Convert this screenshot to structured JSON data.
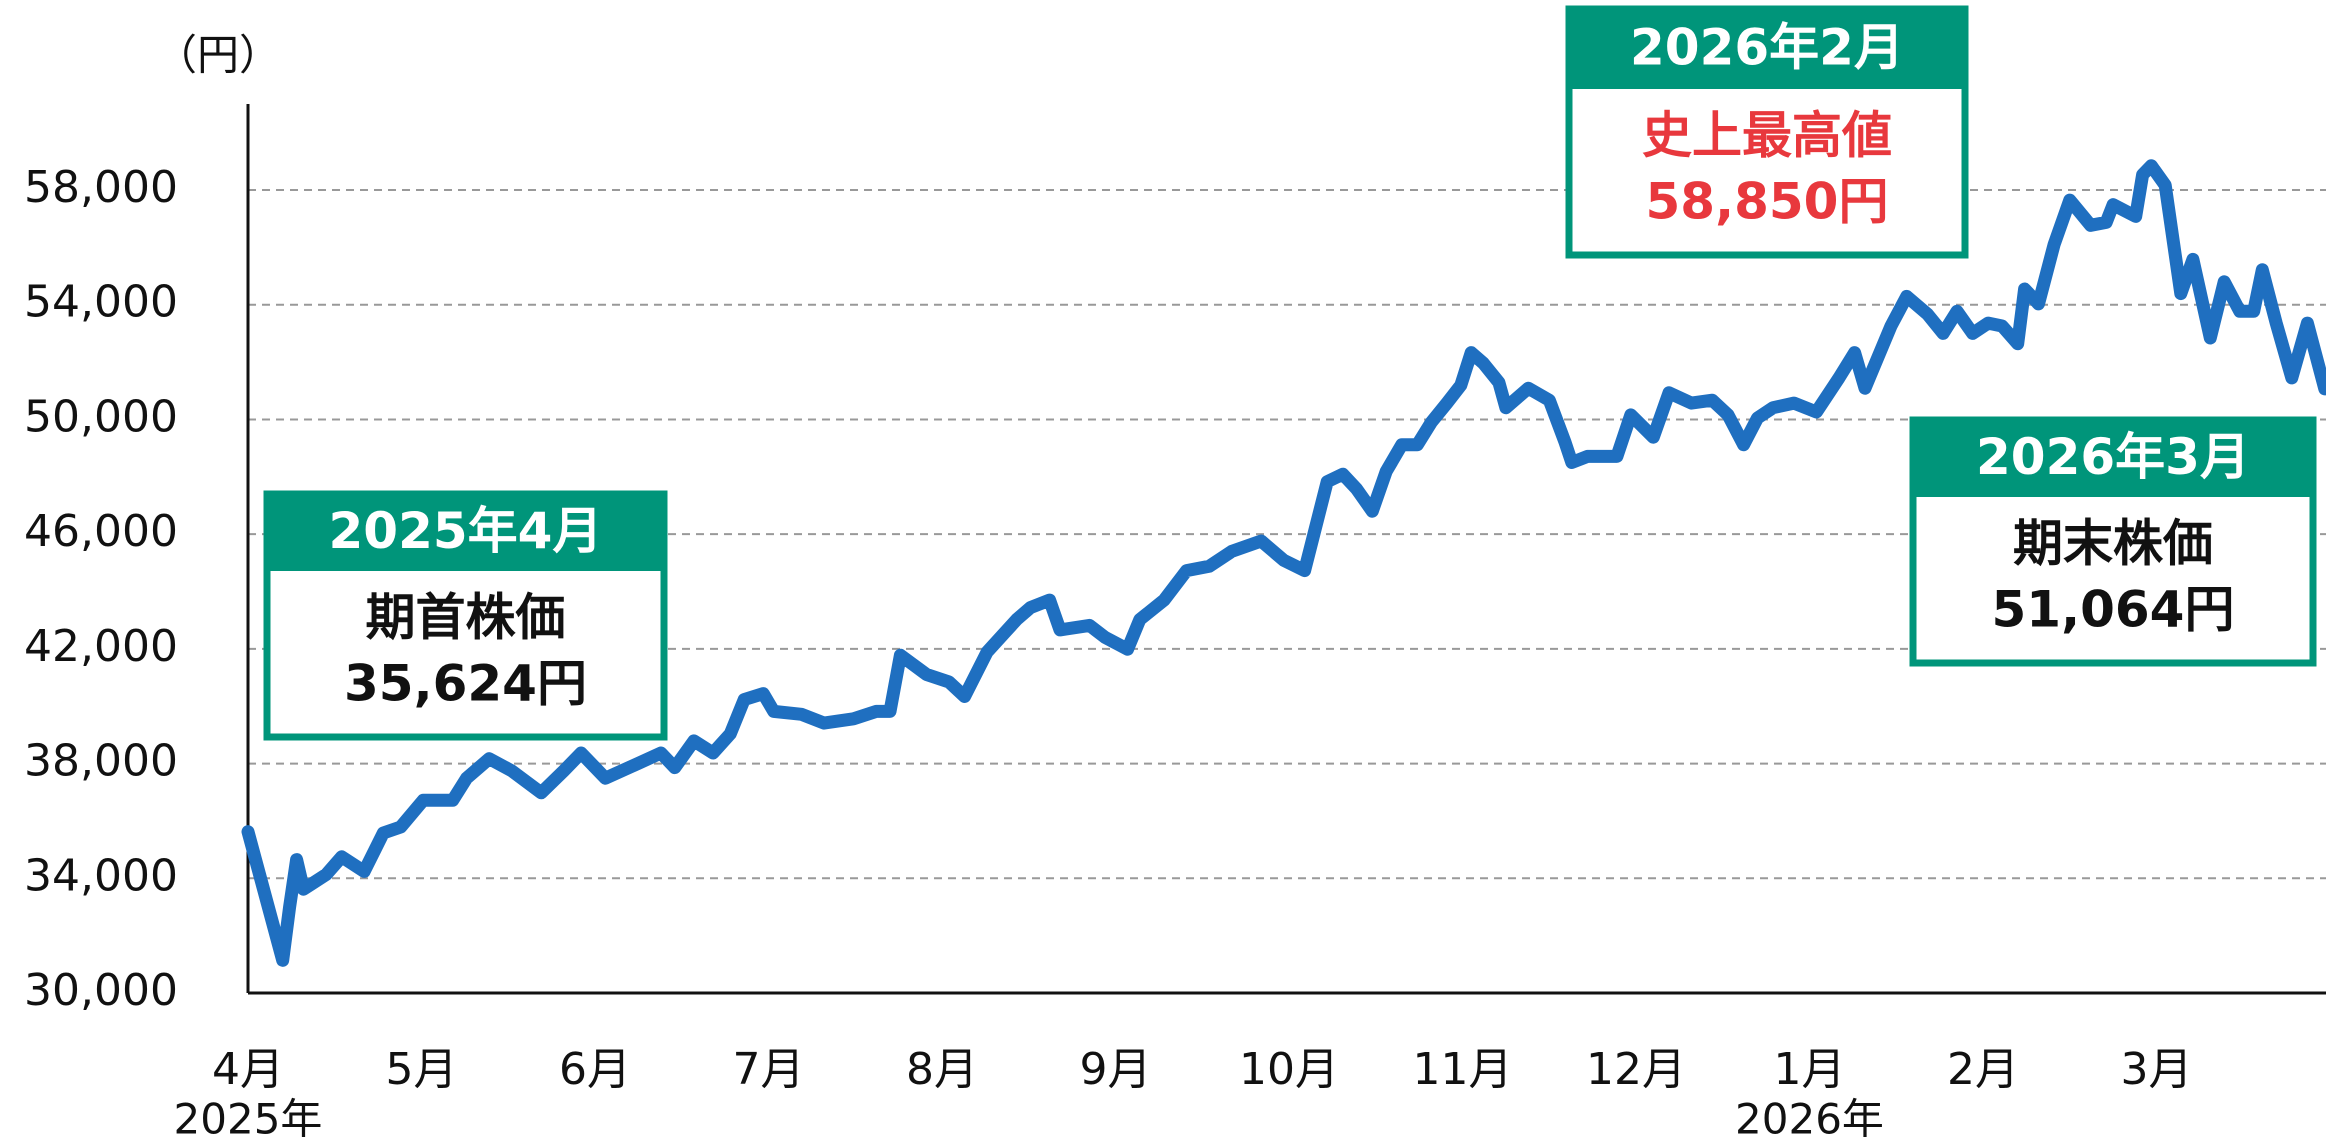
{
  "chart_data": {
    "type": "line",
    "y_unit": "（円）",
    "color": "#1f6fc0",
    "grid": true,
    "xlim": [
      0,
      12
    ],
    "xticks": [
      {
        "value": 0,
        "label": "4月"
      },
      {
        "value": 1,
        "label": "5月"
      },
      {
        "value": 2,
        "label": "6月"
      },
      {
        "value": 3,
        "label": "7月"
      },
      {
        "value": 4,
        "label": "8月"
      },
      {
        "value": 5,
        "label": "9月"
      },
      {
        "value": 6,
        "label": "10月"
      },
      {
        "value": 7,
        "label": "11月"
      },
      {
        "value": 8,
        "label": "12月"
      },
      {
        "value": 9,
        "label": "1月"
      },
      {
        "value": 10,
        "label": "2月"
      },
      {
        "value": 11,
        "label": "3月"
      }
    ],
    "year_labels": [
      {
        "value": 0,
        "label": "2025年"
      },
      {
        "value": 9,
        "label": "2026年"
      }
    ],
    "ylim": [
      30000,
      61000
    ],
    "yticks": [
      {
        "value": 30000,
        "label": "30,000"
      },
      {
        "value": 34000,
        "label": "34,000"
      },
      {
        "value": 38000,
        "label": "38,000"
      },
      {
        "value": 42000,
        "label": "42,000"
      },
      {
        "value": 46000,
        "label": "46,000"
      },
      {
        "value": 50000,
        "label": "50,000"
      },
      {
        "value": 54000,
        "label": "54,000"
      },
      {
        "value": 58000,
        "label": "58,000"
      }
    ],
    "x": [
      0,
      0.2,
      0.24,
      0.28,
      0.32,
      0.45,
      0.54,
      0.67,
      0.78,
      0.88,
      1.01,
      1.18,
      1.26,
      1.39,
      1.52,
      1.69,
      1.82,
      1.92,
      2.06,
      2.25,
      2.38,
      2.46,
      2.57,
      2.68,
      2.78,
      2.86,
      2.97,
      3.03,
      3.19,
      3.32,
      3.49,
      3.62,
      3.7,
      3.76,
      3.91,
      4.04,
      4.13,
      4.26,
      4.43,
      4.51,
      4.62,
      4.68,
      4.85,
      4.94,
      5.07,
      5.14,
      5.28,
      5.41,
      5.54,
      5.67,
      5.84,
      5.97,
      6.09,
      6.22,
      6.31,
      6.39,
      6.48,
      6.56,
      6.65,
      6.74,
      6.82,
      6.91,
      6.99,
      7.05,
      7.12,
      7.21,
      7.25,
      7.38,
      7.5,
      7.59,
      7.63,
      7.72,
      7.89,
      7.97,
      8.1,
      8.19,
      8.32,
      8.44,
      8.53,
      8.62,
      8.7,
      8.79,
      8.91,
      9.04,
      9.17,
      9.26,
      9.32,
      9.47,
      9.56,
      9.68,
      9.77,
      9.85,
      9.94,
      10.03,
      10.11,
      10.2,
      10.24,
      10.32,
      10.41,
      10.5,
      10.62,
      10.71,
      10.75,
      10.88,
      10.92,
      10.97,
      11.05,
      11.14,
      11.21,
      11.31,
      11.39,
      11.48,
      11.56,
      11.61,
      11.69,
      11.78,
      11.87,
      11.97
    ],
    "values": [
      35624,
      31140,
      33000,
      34650,
      33620,
      34130,
      34750,
      34240,
      35580,
      35790,
      36720,
      36720,
      37490,
      38170,
      37750,
      36980,
      37750,
      38370,
      37490,
      38010,
      38370,
      37860,
      38790,
      38370,
      39040,
      40230,
      40440,
      39820,
      39720,
      39410,
      39560,
      39820,
      39820,
      41780,
      41110,
      40850,
      40340,
      41890,
      43020,
      43440,
      43700,
      42660,
      42820,
      42400,
      41990,
      43020,
      43700,
      44730,
      44880,
      45400,
      45760,
      45090,
      44730,
      47830,
      48090,
      47570,
      46800,
      48190,
      49120,
      49120,
      49900,
      50570,
      51190,
      52330,
      51960,
      51290,
      50410,
      51090,
      50670,
      49220,
      48500,
      48710,
      48710,
      50160,
      49380,
      50930,
      50570,
      50670,
      50160,
      49120,
      50050,
      50410,
      50570,
      50260,
      51450,
      52330,
      51090,
      53260,
      54290,
      53670,
      53000,
      53770,
      53000,
      53360,
      53260,
      52640,
      54550,
      54030,
      56100,
      57650,
      56770,
      56870,
      57490,
      57080,
      58530,
      58850,
      58170,
      54390,
      55580,
      52840,
      54800,
      53770,
      53770,
      55220,
      53360,
      51450,
      53360,
      51064
    ],
    "annotations": [
      {
        "header": "2025年4月",
        "lines": [
          "期首株価",
          "35,624円"
        ],
        "text_color": "#111111"
      },
      {
        "header": "2026年2月",
        "lines": [
          "史上最高値",
          "58,850円"
        ],
        "text_color": "#e8383d"
      },
      {
        "header": "2026年3月",
        "lines": [
          "期末株価",
          "51,064円"
        ],
        "text_color": "#111111"
      }
    ]
  }
}
